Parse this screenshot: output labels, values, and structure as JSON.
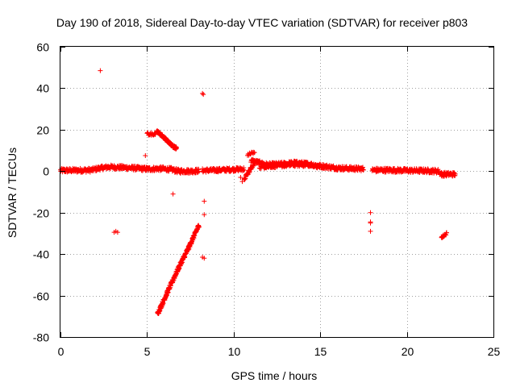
{
  "chart_data": {
    "type": "scatter",
    "title": "Day 190 of 2018, Sidereal Day-to-day VTEC variation (SDTVAR) for receiver p803",
    "xlabel": "GPS time / hours",
    "ylabel": "SDTVAR / TECUs",
    "xlim": [
      0,
      25
    ],
    "ylim": [
      -80,
      60
    ],
    "xticks": [
      0,
      5,
      10,
      15,
      20,
      25
    ],
    "yticks": [
      -80,
      -60,
      -40,
      -20,
      0,
      20,
      40,
      60
    ],
    "grid": true,
    "marker": "+",
    "color": "#ff0000",
    "series": [
      {
        "name": "SDTVAR",
        "segments": [
          {
            "points": [
              [
                0.0,
                0.3
              ],
              [
                1.0,
                0.4
              ],
              [
                1.8,
                0.5
              ],
              [
                2.3,
                1.5
              ],
              [
                2.8,
                2.0
              ],
              [
                3.5,
                1.8
              ],
              [
                4.2,
                1.5
              ],
              [
                5.0,
                1.0
              ],
              [
                5.8,
                1.2
              ],
              [
                6.4,
                0.8
              ],
              [
                6.8,
                0.0
              ],
              [
                7.6,
                0.0
              ],
              [
                8.0,
                0.2
              ]
            ],
            "step": 0.02,
            "jitter": 1.0
          },
          {
            "points": [
              [
                8.2,
                0.3
              ],
              [
                9.0,
                0.5
              ],
              [
                10.0,
                0.8
              ],
              [
                10.6,
                1.0
              ]
            ],
            "step": 0.02,
            "jitter": 0.9
          },
          {
            "points": [
              [
                11.0,
                5.0
              ],
              [
                12.0,
                3.0
              ],
              [
                13.0,
                3.5
              ],
              [
                13.5,
                4.0
              ],
              [
                14.2,
                3.5
              ],
              [
                15.0,
                2.5
              ],
              [
                16.0,
                1.5
              ],
              [
                17.0,
                1.2
              ],
              [
                17.5,
                1.0
              ]
            ],
            "step": 0.02,
            "jitter": 1.0
          },
          {
            "points": [
              [
                11.5,
                2.0
              ],
              [
                12.5,
                2.5
              ],
              [
                13.5,
                3.0
              ],
              [
                14.5,
                3.0
              ],
              [
                15.0,
                2.0
              ]
            ],
            "step": 0.03,
            "jitter": 0.8
          },
          {
            "points": [
              [
                18.0,
                0.5
              ],
              [
                19.0,
                0.5
              ],
              [
                20.0,
                0.3
              ],
              [
                21.0,
                0.2
              ],
              [
                21.8,
                0.0
              ],
              [
                22.0,
                -1.5
              ],
              [
                22.8,
                -1.5
              ]
            ],
            "step": 0.02,
            "jitter": 1.0
          },
          {
            "points": [
              [
                5.6,
                -69
              ],
              [
                6.2,
                -58
              ],
              [
                6.8,
                -47
              ],
              [
                7.4,
                -37
              ],
              [
                8.0,
                -26
              ]
            ],
            "step": 0.01,
            "jitter": 0.9
          },
          {
            "points": [
              [
                5.55,
                19.5
              ],
              [
                6.0,
                16.0
              ],
              [
                6.5,
                12.0
              ],
              [
                6.7,
                11.0
              ]
            ],
            "step": 0.01,
            "jitter": 0.6
          },
          {
            "points": [
              [
                5.0,
                18.0
              ],
              [
                5.5,
                17.5
              ]
            ],
            "step": 0.03,
            "jitter": 0.7
          },
          {
            "points": [
              [
                10.6,
                -4.0
              ],
              [
                10.9,
                0.0
              ],
              [
                11.2,
                4.0
              ]
            ],
            "step": 0.02,
            "jitter": 0.8
          },
          {
            "points": [
              [
                10.8,
                8.0
              ],
              [
                11.2,
                9.0
              ]
            ],
            "step": 0.04,
            "jitter": 0.6
          },
          {
            "points": [
              [
                22.0,
                -32.0
              ],
              [
                22.3,
                -30.0
              ]
            ],
            "step": 0.02,
            "jitter": 0.5
          }
        ],
        "isolated": [
          [
            2.3,
            48.5
          ],
          [
            8.2,
            37.5
          ],
          [
            8.25,
            37.0
          ],
          [
            4.9,
            7.5
          ],
          [
            6.5,
            -11.0
          ],
          [
            3.1,
            -29.5
          ],
          [
            3.2,
            -29.0
          ],
          [
            3.3,
            -29.5
          ],
          [
            8.3,
            -14.5
          ],
          [
            8.3,
            -21.0
          ],
          [
            8.2,
            -41.5
          ],
          [
            8.3,
            -42.0
          ],
          [
            17.9,
            -20.0
          ],
          [
            17.9,
            -24.5
          ],
          [
            17.9,
            -25.0
          ],
          [
            17.9,
            -29.0
          ],
          [
            10.4,
            -3.0
          ],
          [
            10.5,
            -5.0
          ]
        ]
      }
    ]
  }
}
